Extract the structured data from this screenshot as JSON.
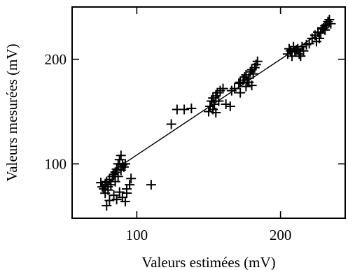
{
  "chart_data": {
    "type": "scatter",
    "xlabel": "Valeurs estimées (mV)",
    "ylabel": "Valeurs mesurées (mV)",
    "xlim": [
      55,
      245
    ],
    "ylim": [
      48,
      250
    ],
    "xticks": [
      100,
      200
    ],
    "yticks": [
      100,
      200
    ],
    "grid": false,
    "legend": "none",
    "marker": "plus",
    "fit_line": {
      "from": [
        82,
        92
      ],
      "to": [
        235,
        232
      ]
    },
    "points": [
      [
        75,
        82
      ],
      [
        76,
        78
      ],
      [
        77,
        76
      ],
      [
        78,
        80
      ],
      [
        79,
        83
      ],
      [
        80,
        78
      ],
      [
        81,
        85
      ],
      [
        82,
        80
      ],
      [
        83,
        88
      ],
      [
        84,
        90
      ],
      [
        85,
        92
      ],
      [
        86,
        95
      ],
      [
        87,
        100
      ],
      [
        88,
        104
      ],
      [
        89,
        108
      ],
      [
        90,
        99
      ],
      [
        80,
        75
      ],
      [
        84,
        70
      ],
      [
        86,
        66
      ],
      [
        88,
        73
      ],
      [
        90,
        68
      ],
      [
        92,
        64
      ],
      [
        93,
        72
      ],
      [
        95,
        80
      ],
      [
        96,
        86
      ],
      [
        93,
        76
      ],
      [
        91,
        97
      ],
      [
        85,
        83
      ],
      [
        78,
        72
      ],
      [
        87,
        88
      ],
      [
        92,
        100
      ],
      [
        89,
        94
      ],
      [
        79,
        60
      ],
      [
        81,
        65
      ],
      [
        110,
        80
      ],
      [
        124,
        138
      ],
      [
        128,
        152
      ],
      [
        133,
        152
      ],
      [
        138,
        153
      ],
      [
        150,
        150
      ],
      [
        151,
        155
      ],
      [
        152,
        160
      ],
      [
        153,
        163
      ],
      [
        154,
        157
      ],
      [
        155,
        165
      ],
      [
        156,
        168
      ],
      [
        157,
        160
      ],
      [
        158,
        170
      ],
      [
        160,
        172
      ],
      [
        162,
        157
      ],
      [
        165,
        155
      ],
      [
        166,
        170
      ],
      [
        168,
        172
      ],
      [
        172,
        178
      ],
      [
        174,
        180
      ],
      [
        175,
        183
      ],
      [
        176,
        185
      ],
      [
        177,
        178
      ],
      [
        178,
        182
      ],
      [
        179,
        188
      ],
      [
        180,
        190
      ],
      [
        181,
        186
      ],
      [
        182,
        192
      ],
      [
        183,
        195
      ],
      [
        184,
        198
      ],
      [
        172,
        168
      ],
      [
        176,
        174
      ],
      [
        171,
        177
      ],
      [
        205,
        205
      ],
      [
        206,
        210
      ],
      [
        207,
        208
      ],
      [
        208,
        203
      ],
      [
        209,
        212
      ],
      [
        210,
        207
      ],
      [
        211,
        209
      ],
      [
        212,
        210
      ],
      [
        213,
        205
      ],
      [
        214,
        203
      ],
      [
        215,
        212
      ],
      [
        216,
        208
      ],
      [
        220,
        215
      ],
      [
        222,
        220
      ],
      [
        224,
        223
      ],
      [
        226,
        226
      ],
      [
        228,
        225
      ],
      [
        229,
        229
      ],
      [
        230,
        230
      ],
      [
        231,
        228
      ],
      [
        232,
        233
      ],
      [
        233,
        236
      ],
      [
        234,
        238
      ],
      [
        235,
        234
      ],
      [
        227,
        220
      ],
      [
        225,
        217
      ],
      [
        231,
        232
      ],
      [
        218,
        214
      ],
      [
        153,
        152
      ],
      [
        155,
        149
      ],
      [
        180,
        175
      ],
      [
        178,
        178
      ]
    ]
  }
}
